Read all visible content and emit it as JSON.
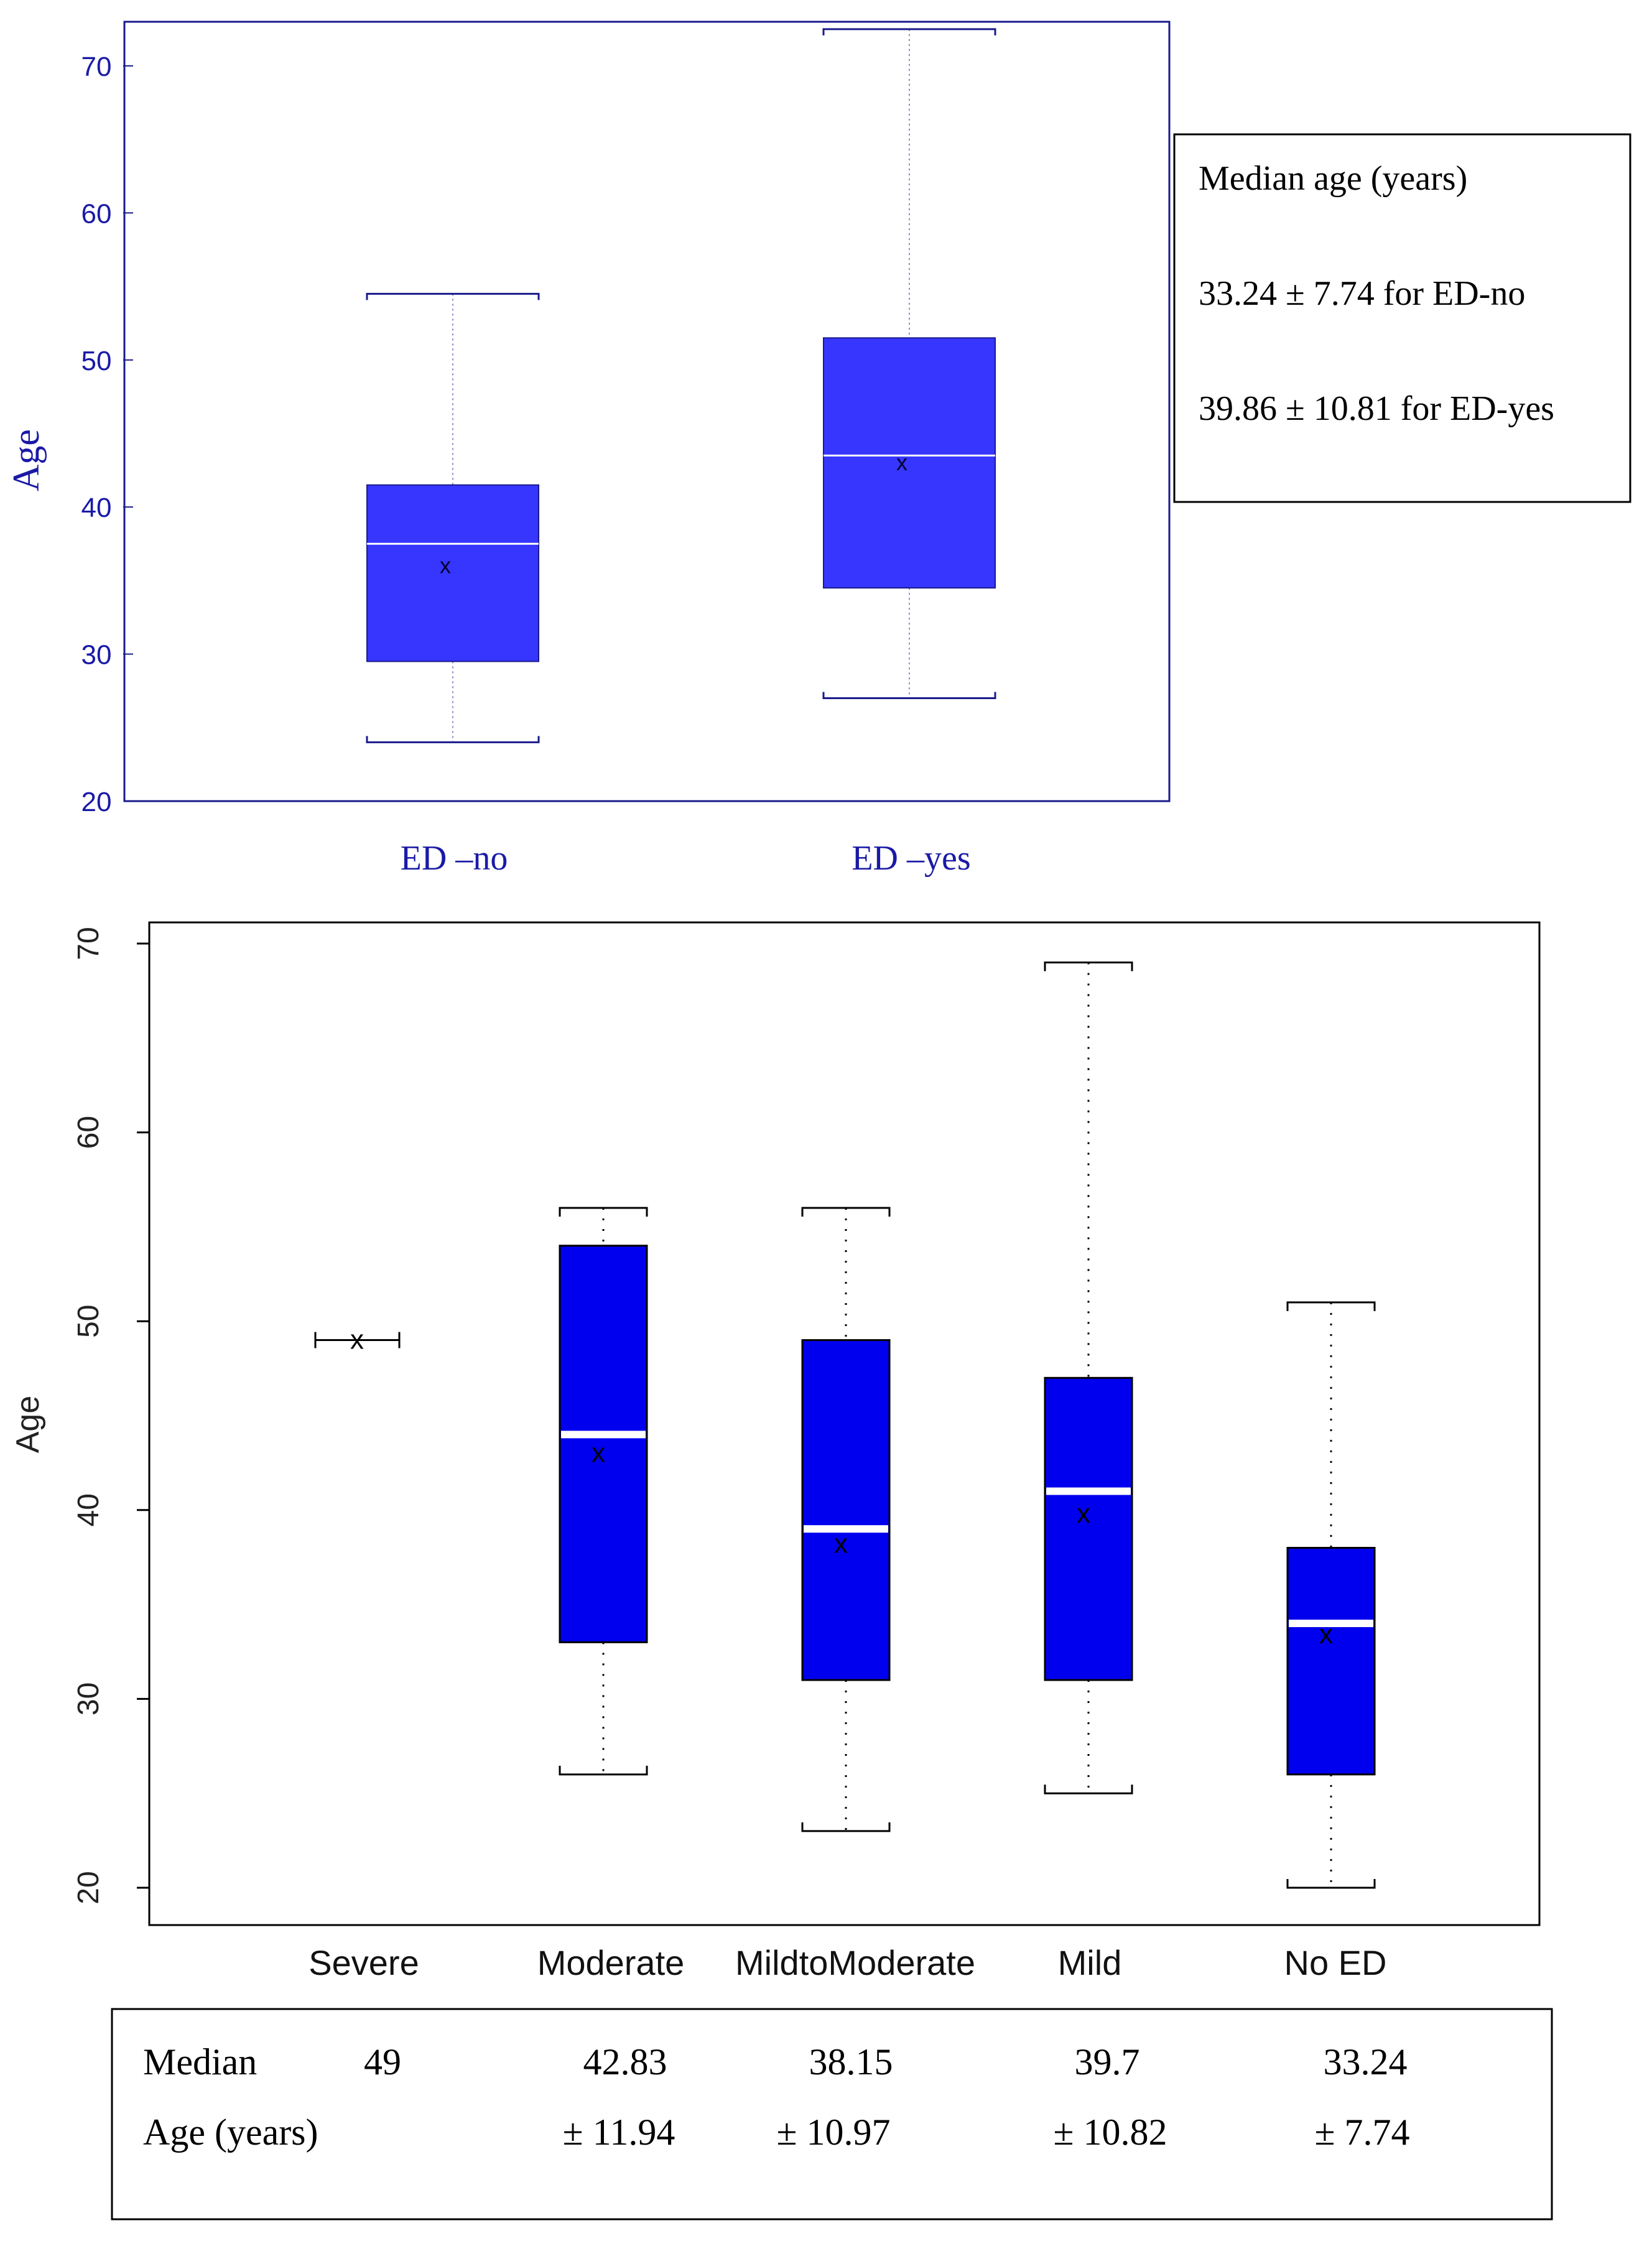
{
  "chart_data": [
    {
      "type": "boxplot",
      "title": "",
      "ylabel": "Age",
      "ylim": [
        20,
        73
      ],
      "yticks": [
        20,
        30,
        40,
        50,
        60,
        70
      ],
      "categories": [
        "ED –no",
        "ED –yes"
      ],
      "boxes": [
        {
          "name": "ED –no",
          "whisker_low": 24,
          "q1": 29.5,
          "median": 37.5,
          "q3": 41.5,
          "whisker_high": 54.5,
          "mean": 36
        },
        {
          "name": "ED –yes",
          "whisker_low": 27,
          "q1": 34.5,
          "median": 43.5,
          "q3": 51.5,
          "whisker_high": 72.5,
          "mean": 43
        }
      ],
      "colors": {
        "box": "#3636ff",
        "axis": "#1a1a8c",
        "text": "#1a1aa6"
      },
      "legend": {
        "title": "Median age (years)",
        "lines": [
          "33.24 ± 7.74 for ED-no",
          "39.86 ± 10.81 for ED-yes"
        ]
      }
    },
    {
      "type": "boxplot",
      "title": "",
      "ylabel": "Age",
      "ylim": [
        19.5,
        70.5
      ],
      "yticks": [
        20,
        30,
        40,
        50,
        60,
        70
      ],
      "categories": [
        "Severe",
        "Moderate",
        "MildtoModerate",
        "Mild",
        "No ED"
      ],
      "boxes": [
        {
          "name": "Severe",
          "whisker_low": 49,
          "q1": 49,
          "median": 49,
          "q3": 49,
          "whisker_high": 49,
          "mean": 49
        },
        {
          "name": "Moderate",
          "whisker_low": 26,
          "q1": 33,
          "median": 44,
          "q3": 54,
          "whisker_high": 56,
          "mean": 43
        },
        {
          "name": "MildtoModerate",
          "whisker_low": 23,
          "q1": 31,
          "median": 39,
          "q3": 49,
          "whisker_high": 56,
          "mean": 38.2
        },
        {
          "name": "Mild",
          "whisker_low": 25,
          "q1": 31,
          "median": 41,
          "q3": 47,
          "whisker_high": 69,
          "mean": 39.8
        },
        {
          "name": "No ED",
          "whisker_low": 20,
          "q1": 26,
          "median": 34,
          "q3": 38,
          "whisker_high": 51,
          "mean": 33.4
        }
      ],
      "colors": {
        "box": "#0000ee",
        "axis": "#000000",
        "median": "#ffffff"
      },
      "table": {
        "row_labels": [
          "Median",
          "Age (years)"
        ],
        "medians": [
          "49",
          "42.83",
          "38.15",
          "39.7",
          "33.24"
        ],
        "sds": [
          "",
          "± 11.94",
          "± 10.97",
          "± 10.82",
          "± 7.74"
        ]
      }
    }
  ]
}
